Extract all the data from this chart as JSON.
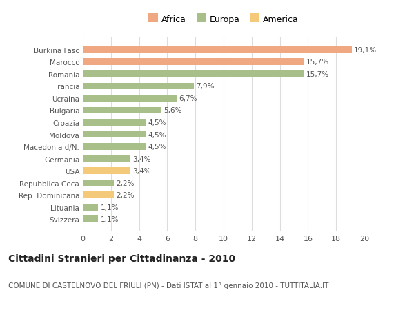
{
  "categories": [
    "Svizzera",
    "Lituania",
    "Rep. Dominicana",
    "Repubblica Ceca",
    "USA",
    "Germania",
    "Macedonia d/N.",
    "Moldova",
    "Croazia",
    "Bulgaria",
    "Ucraina",
    "Francia",
    "Romania",
    "Marocco",
    "Burkina Faso"
  ],
  "values": [
    1.1,
    1.1,
    2.2,
    2.2,
    3.4,
    3.4,
    4.5,
    4.5,
    4.5,
    5.6,
    6.7,
    7.9,
    15.7,
    15.7,
    19.1
  ],
  "colors": [
    "#a8bf8a",
    "#a8bf8a",
    "#f5c97a",
    "#a8bf8a",
    "#f5c97a",
    "#a8bf8a",
    "#a8bf8a",
    "#a8bf8a",
    "#a8bf8a",
    "#a8bf8a",
    "#a8bf8a",
    "#a8bf8a",
    "#a8bf8a",
    "#f0a882",
    "#f0a882"
  ],
  "labels": [
    "1,1%",
    "1,1%",
    "2,2%",
    "2,2%",
    "3,4%",
    "3,4%",
    "4,5%",
    "4,5%",
    "4,5%",
    "5,6%",
    "6,7%",
    "7,9%",
    "15,7%",
    "15,7%",
    "19,1%"
  ],
  "xlim": [
    0,
    20
  ],
  "xticks": [
    0,
    2,
    4,
    6,
    8,
    10,
    12,
    14,
    16,
    18,
    20
  ],
  "legend": [
    {
      "label": "Africa",
      "color": "#f0a882"
    },
    {
      "label": "Europa",
      "color": "#a8bf8a"
    },
    {
      "label": "America",
      "color": "#f5c97a"
    }
  ],
  "title": "Cittadini Stranieri per Cittadinanza - 2010",
  "subtitle": "COMUNE DI CASTELNOVO DEL FRIULI (PN) - Dati ISTAT al 1° gennaio 2010 - TUTTITALIA.IT",
  "bg_color": "#ffffff",
  "grid_color": "#dddddd",
  "bar_height": 0.55,
  "title_fontsize": 10,
  "subtitle_fontsize": 7.5,
  "label_fontsize": 7.5,
  "tick_fontsize": 8,
  "value_fontsize": 7.5
}
